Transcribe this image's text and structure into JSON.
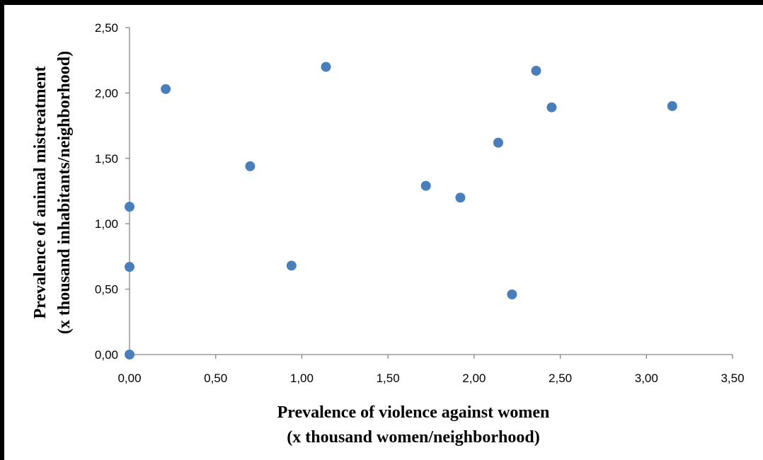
{
  "chart_data": {
    "type": "scatter",
    "title": "",
    "xlabel": [
      "Prevalence of violence against women",
      "(x thousand women/neighborhood)"
    ],
    "ylabel": [
      "Prevalence of animal mistreatment",
      "(x thousand inhabitants/neighborhood)"
    ],
    "xlim": [
      0,
      3.5
    ],
    "ylim": [
      0,
      2.5
    ],
    "x_ticks": [
      "0,00",
      "0,50",
      "1,00",
      "1,50",
      "2,00",
      "2,50",
      "3,00",
      "3,50"
    ],
    "y_ticks": [
      "0,00",
      "0,50",
      "1,00",
      "1,50",
      "2,00",
      "2,50"
    ],
    "x_tick_values": [
      0,
      0.5,
      1,
      1.5,
      2,
      2.5,
      3,
      3.5
    ],
    "y_tick_values": [
      0,
      0.5,
      1,
      1.5,
      2,
      2.5
    ],
    "grid": false,
    "legend": "none",
    "marker_color": "#4a7ebb",
    "points": [
      {
        "x": 0.0,
        "y": 0.0
      },
      {
        "x": 0.0,
        "y": 0.67
      },
      {
        "x": 0.0,
        "y": 1.13
      },
      {
        "x": 0.21,
        "y": 2.03
      },
      {
        "x": 0.7,
        "y": 1.44
      },
      {
        "x": 0.94,
        "y": 0.68
      },
      {
        "x": 1.14,
        "y": 2.2
      },
      {
        "x": 1.72,
        "y": 1.29
      },
      {
        "x": 1.92,
        "y": 1.2
      },
      {
        "x": 2.14,
        "y": 1.62
      },
      {
        "x": 2.22,
        "y": 0.46
      },
      {
        "x": 2.36,
        "y": 2.17
      },
      {
        "x": 2.45,
        "y": 1.89
      },
      {
        "x": 3.15,
        "y": 1.9
      }
    ]
  }
}
